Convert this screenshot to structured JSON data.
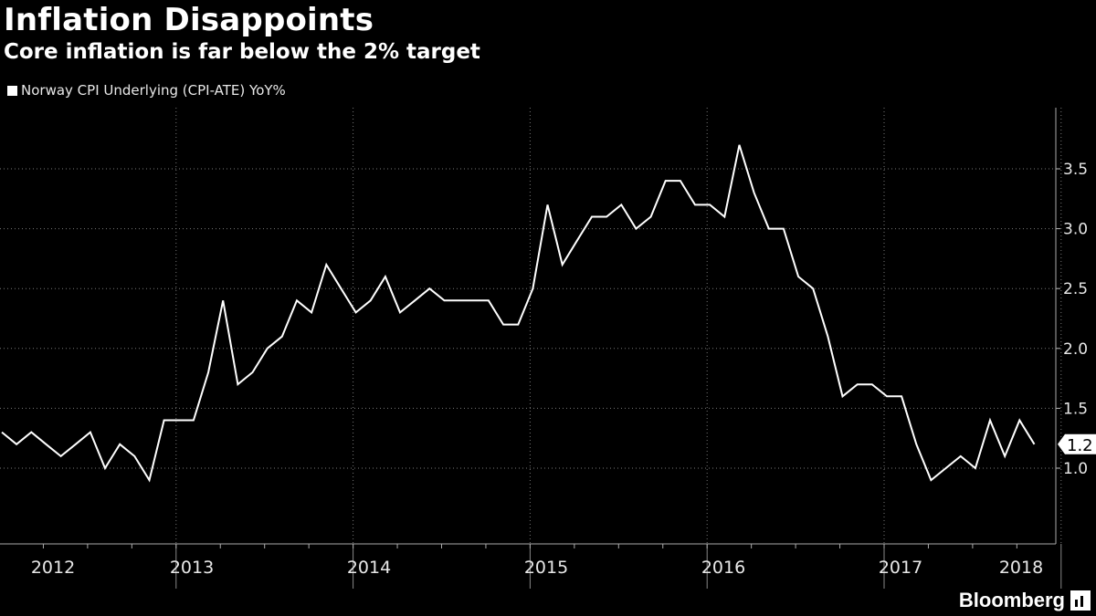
{
  "chart_data": {
    "type": "line",
    "title": "Inflation Disappoints",
    "subtitle": "Core inflation is far below the 2% target",
    "legend": [
      "Norway CPI Underlying (CPI-ATE) YoY%"
    ],
    "ylim": [
      0.5,
      4.0
    ],
    "yticks": [
      1.0,
      1.5,
      2.0,
      2.5,
      3.0,
      3.5
    ],
    "ytick_labels": [
      "1.0",
      "1.5",
      "2.0",
      "2.5",
      "3.0",
      "3.5"
    ],
    "year_labels": [
      "2012",
      "2013",
      "2014",
      "2015",
      "2016",
      "2017",
      "2018"
    ],
    "last_value_label": "1.2",
    "grid": true,
    "series": [
      {
        "name": "Norway CPI Underlying (CPI-ATE) YoY%",
        "start": "2012-01",
        "values": [
          1.3,
          1.2,
          1.3,
          1.2,
          1.1,
          1.2,
          1.3,
          1.0,
          1.2,
          1.1,
          0.9,
          1.4,
          1.4,
          1.4,
          1.8,
          2.4,
          1.7,
          1.8,
          2.0,
          2.1,
          2.4,
          2.3,
          2.7,
          2.5,
          2.3,
          2.4,
          2.6,
          2.3,
          2.4,
          2.5,
          2.4,
          2.4,
          2.4,
          2.4,
          2.2,
          2.2,
          2.5,
          3.2,
          2.7,
          2.9,
          3.1,
          3.1,
          3.2,
          3.0,
          3.1,
          3.4,
          3.4,
          3.2,
          3.2,
          3.1,
          3.7,
          3.3,
          3.0,
          3.0,
          2.6,
          2.5,
          2.1,
          1.6,
          1.7,
          1.7,
          1.6,
          1.6,
          1.2,
          0.9,
          1.0,
          1.1,
          1.0,
          1.4,
          1.1,
          1.4,
          1.2
        ]
      }
    ]
  },
  "brand": {
    "name": "Bloomberg",
    "icon": "bloomberg-terminal-icon"
  }
}
